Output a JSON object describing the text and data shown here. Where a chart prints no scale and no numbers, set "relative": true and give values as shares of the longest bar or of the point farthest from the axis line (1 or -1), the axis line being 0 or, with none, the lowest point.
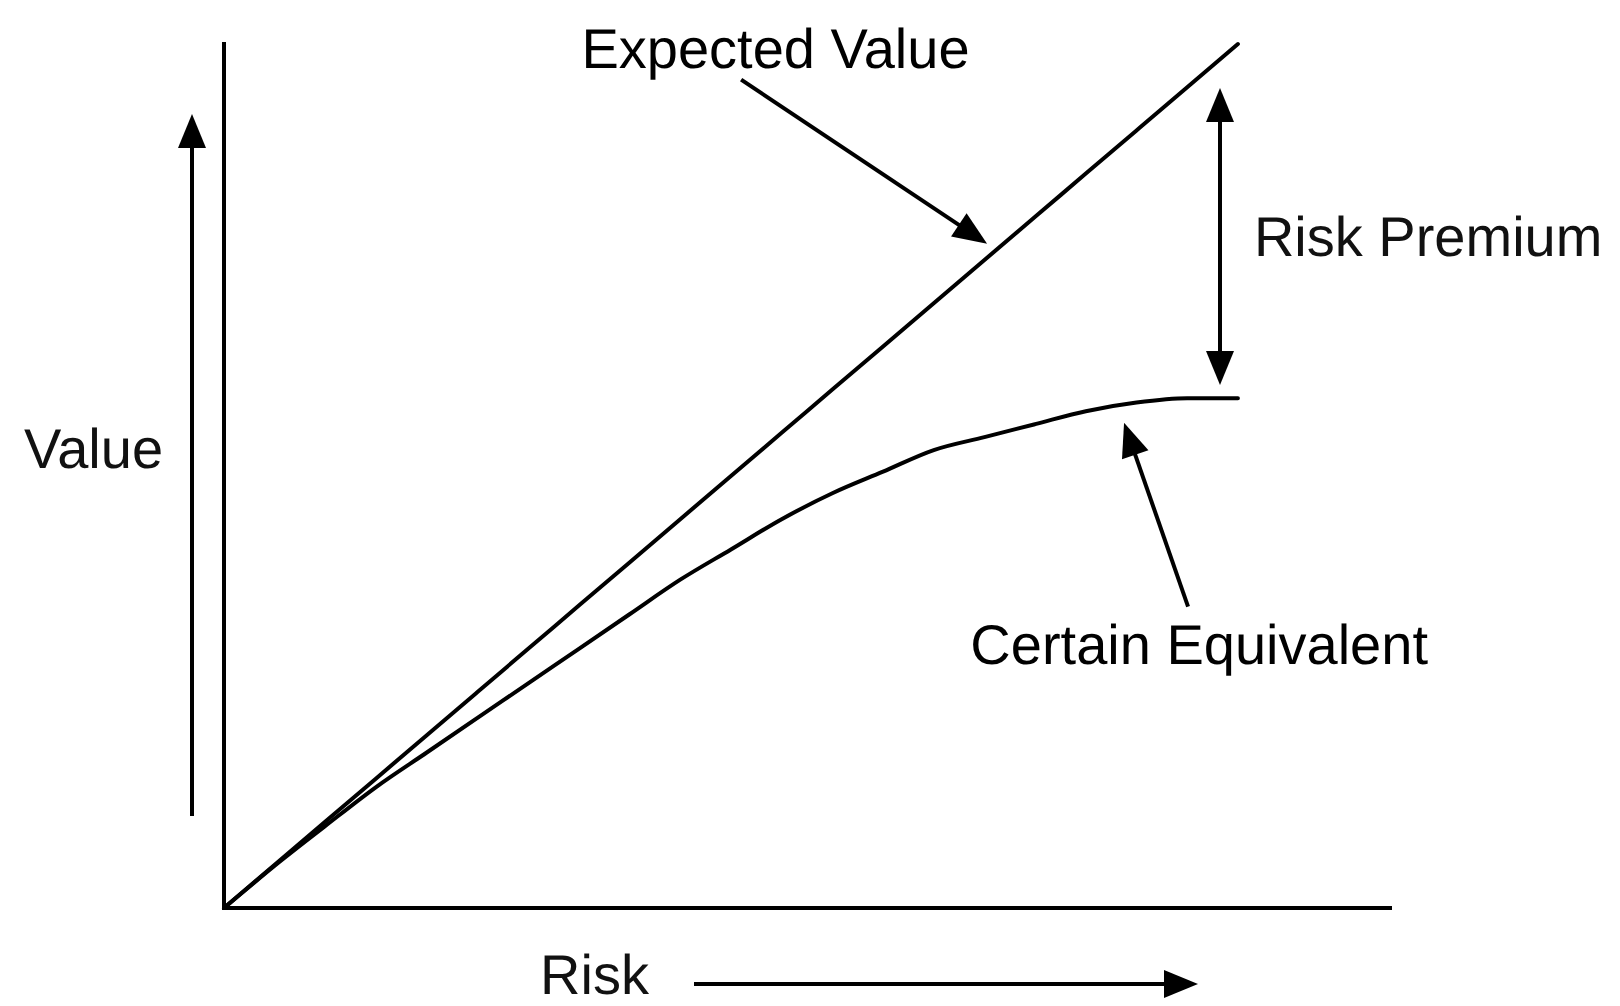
{
  "chart_data": {
    "type": "line",
    "relative": true,
    "marker": "none",
    "xlabel": "Risk",
    "ylabel": "Value",
    "annotations": [
      "Risk Premium"
    ],
    "categories": [
      null,
      null,
      null,
      null,
      null,
      null,
      null,
      null,
      null,
      null,
      null,
      null,
      null,
      null,
      null,
      null,
      null,
      null,
      null,
      null,
      null,
      null,
      null,
      null
    ],
    "series": [
      {
        "name": "Expected Value",
        "color": "#000000",
        "values": [
          0,
          0.05,
          0.1,
          0.15,
          0.2,
          0.25,
          0.3,
          0.35,
          0.4,
          0.45,
          0.5,
          0.55,
          0.6,
          0.65,
          0.7,
          0.75,
          0.8,
          0.85,
          0.9,
          0.95,
          1,
          null,
          null,
          null
        ]
      },
      {
        "name": "Certain Equivalent",
        "color": "#000000",
        "values": [
          0,
          0.049,
          0.095,
          0.14,
          0.18,
          0.22,
          0.26,
          0.3,
          0.34,
          0.38,
          0.415,
          0.45,
          0.48,
          0.505,
          0.53,
          0.545,
          0.56,
          0.575,
          0.585,
          0.59,
          0.59,
          null,
          null,
          null
        ]
      }
    ]
  }
}
